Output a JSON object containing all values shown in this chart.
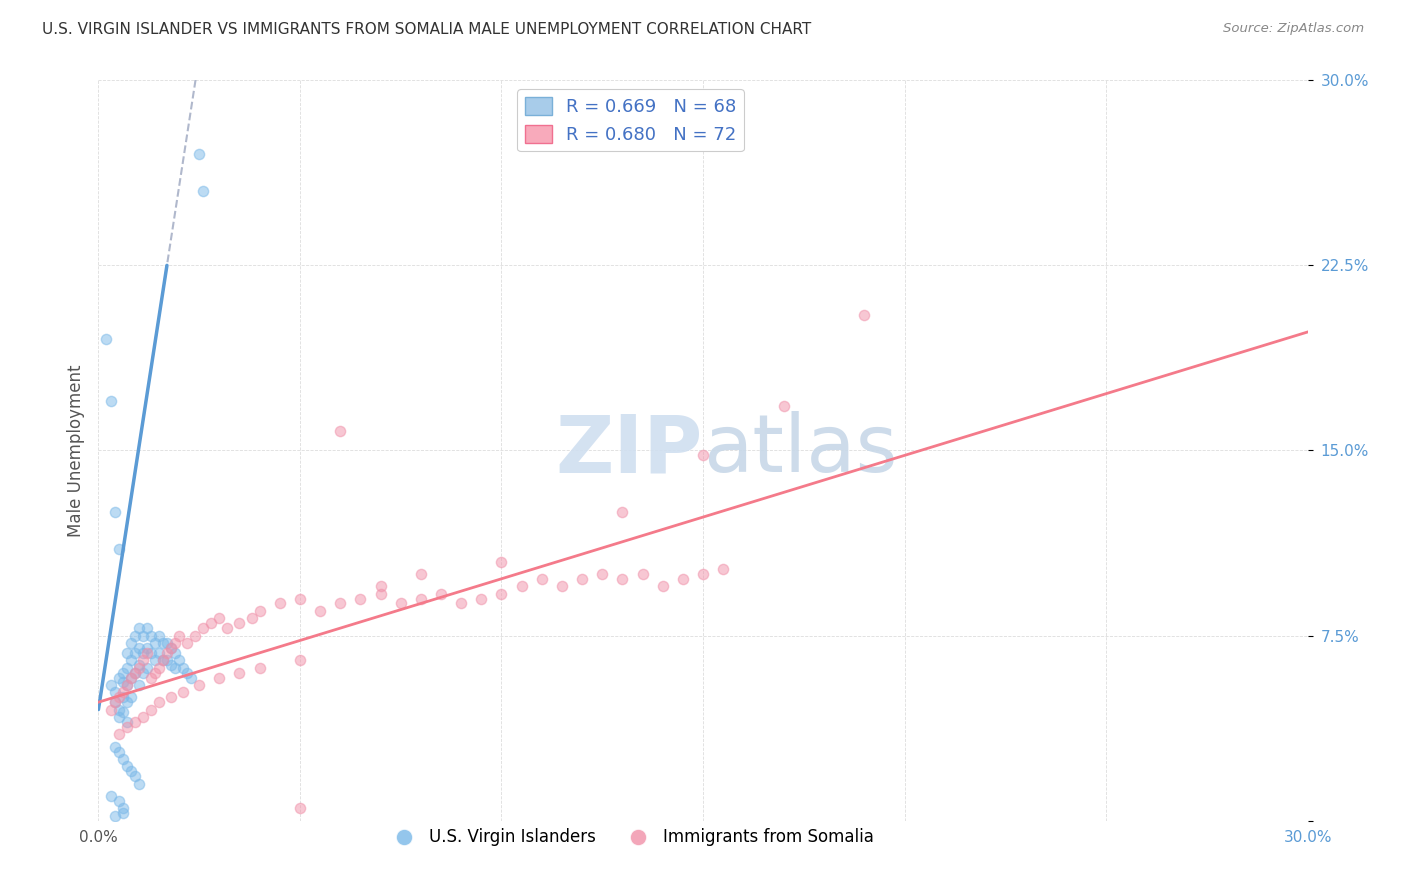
{
  "title": "U.S. VIRGIN ISLANDER VS IMMIGRANTS FROM SOMALIA MALE UNEMPLOYMENT CORRELATION CHART",
  "source": "Source: ZipAtlas.com",
  "ylabel": "Male Unemployment",
  "xlim": [
    0.0,
    0.3
  ],
  "ylim": [
    0.0,
    0.3
  ],
  "xticks": [
    0.0,
    0.05,
    0.1,
    0.15,
    0.2,
    0.25,
    0.3
  ],
  "yticks": [
    0.0,
    0.075,
    0.15,
    0.225,
    0.3
  ],
  "watermark": "ZIPatlas",
  "blue_scatter_x": [
    0.003,
    0.004,
    0.004,
    0.005,
    0.005,
    0.005,
    0.006,
    0.006,
    0.006,
    0.006,
    0.007,
    0.007,
    0.007,
    0.007,
    0.007,
    0.008,
    0.008,
    0.008,
    0.008,
    0.009,
    0.009,
    0.009,
    0.01,
    0.01,
    0.01,
    0.01,
    0.011,
    0.011,
    0.011,
    0.012,
    0.012,
    0.012,
    0.013,
    0.013,
    0.014,
    0.014,
    0.015,
    0.015,
    0.016,
    0.016,
    0.017,
    0.017,
    0.018,
    0.018,
    0.019,
    0.019,
    0.02,
    0.021,
    0.022,
    0.023,
    0.004,
    0.005,
    0.006,
    0.007,
    0.008,
    0.009,
    0.01,
    0.003,
    0.005,
    0.006,
    0.002,
    0.003,
    0.004,
    0.005,
    0.025,
    0.026,
    0.004,
    0.006
  ],
  "blue_scatter_y": [
    0.055,
    0.052,
    0.048,
    0.058,
    0.045,
    0.042,
    0.06,
    0.056,
    0.05,
    0.044,
    0.068,
    0.062,
    0.055,
    0.048,
    0.04,
    0.072,
    0.065,
    0.058,
    0.05,
    0.075,
    0.068,
    0.06,
    0.078,
    0.07,
    0.063,
    0.055,
    0.075,
    0.068,
    0.06,
    0.078,
    0.07,
    0.062,
    0.075,
    0.068,
    0.072,
    0.065,
    0.075,
    0.068,
    0.072,
    0.065,
    0.072,
    0.065,
    0.07,
    0.063,
    0.068,
    0.062,
    0.065,
    0.062,
    0.06,
    0.058,
    0.03,
    0.028,
    0.025,
    0.022,
    0.02,
    0.018,
    0.015,
    0.01,
    0.008,
    0.005,
    0.195,
    0.17,
    0.125,
    0.11,
    0.27,
    0.255,
    0.002,
    0.003
  ],
  "pink_scatter_x": [
    0.003,
    0.004,
    0.005,
    0.006,
    0.007,
    0.008,
    0.009,
    0.01,
    0.011,
    0.012,
    0.013,
    0.014,
    0.015,
    0.016,
    0.017,
    0.018,
    0.019,
    0.02,
    0.022,
    0.024,
    0.026,
    0.028,
    0.03,
    0.032,
    0.035,
    0.038,
    0.04,
    0.045,
    0.05,
    0.055,
    0.06,
    0.065,
    0.07,
    0.075,
    0.08,
    0.085,
    0.09,
    0.095,
    0.1,
    0.105,
    0.11,
    0.115,
    0.12,
    0.125,
    0.13,
    0.135,
    0.14,
    0.145,
    0.15,
    0.155,
    0.005,
    0.007,
    0.009,
    0.011,
    0.013,
    0.015,
    0.018,
    0.021,
    0.025,
    0.03,
    0.035,
    0.04,
    0.05,
    0.06,
    0.07,
    0.08,
    0.1,
    0.13,
    0.15,
    0.17,
    0.19,
    0.05
  ],
  "pink_scatter_y": [
    0.045,
    0.048,
    0.05,
    0.052,
    0.055,
    0.058,
    0.06,
    0.062,
    0.065,
    0.068,
    0.058,
    0.06,
    0.062,
    0.065,
    0.068,
    0.07,
    0.072,
    0.075,
    0.072,
    0.075,
    0.078,
    0.08,
    0.082,
    0.078,
    0.08,
    0.082,
    0.085,
    0.088,
    0.09,
    0.085,
    0.088,
    0.09,
    0.092,
    0.088,
    0.09,
    0.092,
    0.088,
    0.09,
    0.092,
    0.095,
    0.098,
    0.095,
    0.098,
    0.1,
    0.098,
    0.1,
    0.095,
    0.098,
    0.1,
    0.102,
    0.035,
    0.038,
    0.04,
    0.042,
    0.045,
    0.048,
    0.05,
    0.052,
    0.055,
    0.058,
    0.06,
    0.062,
    0.065,
    0.158,
    0.095,
    0.1,
    0.105,
    0.125,
    0.148,
    0.168,
    0.205,
    0.005
  ],
  "blue_line_color": "#5b9bd5",
  "pink_line_color": "#f47a8a",
  "blue_dashed_color": "#b0b8cc",
  "scatter_blue_color": "#7ab8e8",
  "scatter_pink_color": "#f090a8",
  "scatter_alpha": 0.5,
  "scatter_size": 55,
  "blue_line_x0": 0.0,
  "blue_line_y0": 0.045,
  "blue_line_x1": 0.017,
  "blue_line_y1": 0.225,
  "pink_line_x0": 0.0,
  "pink_line_y0": 0.048,
  "pink_line_x1": 0.3,
  "pink_line_y1": 0.198
}
